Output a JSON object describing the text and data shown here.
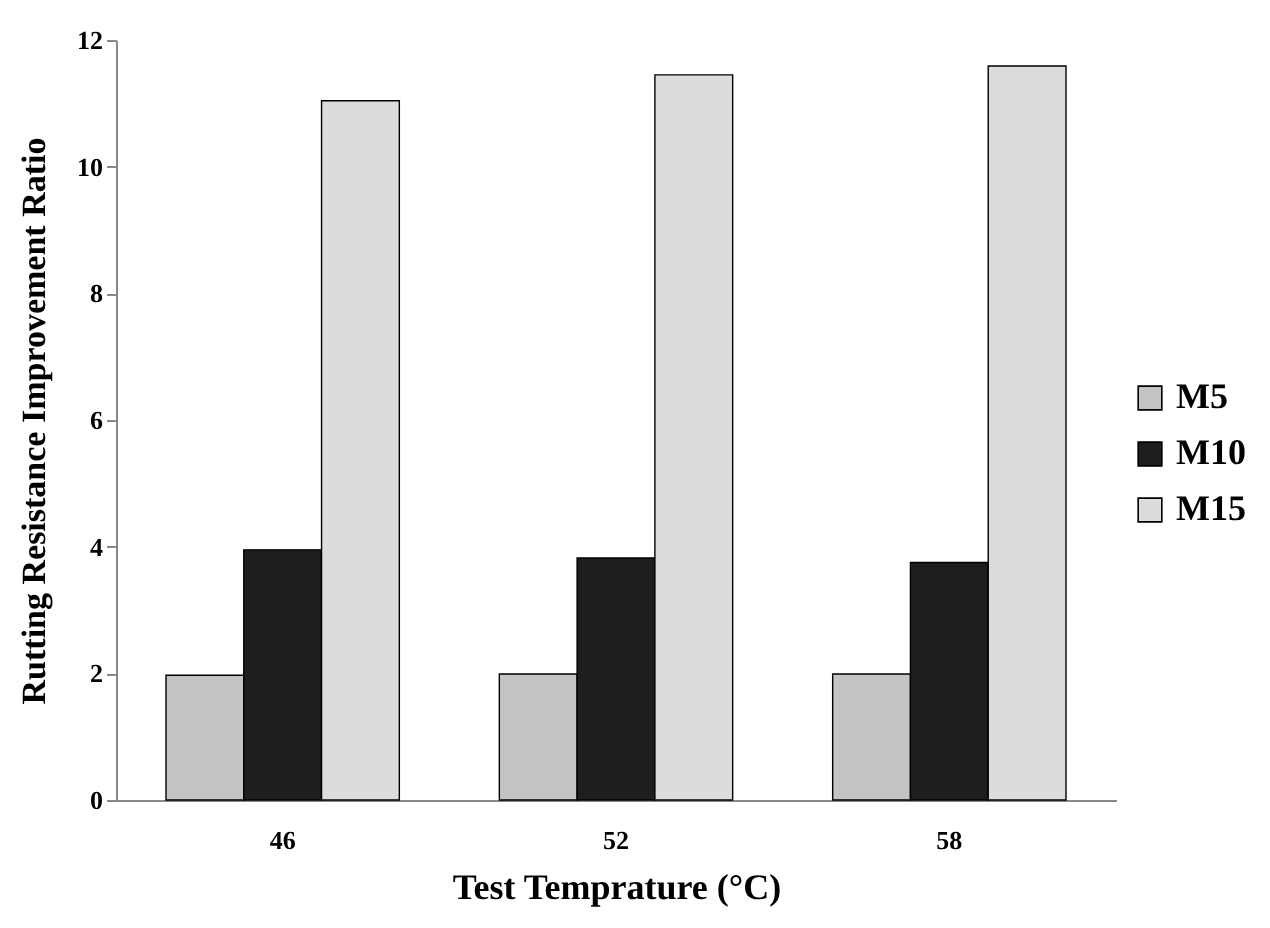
{
  "chart_data": {
    "type": "bar",
    "xlabel": "Test Temprature (°C)",
    "ylabel": "Rutting Resistance Improvement Ratio",
    "categories": [
      "46",
      "52",
      "58"
    ],
    "series": [
      {
        "name": "M5",
        "color": "#c4c4c4",
        "values": [
          1.97,
          1.99,
          1.99
        ]
      },
      {
        "name": "M10",
        "color": "#1e1e1e",
        "values": [
          3.95,
          3.82,
          3.75
        ]
      },
      {
        "name": "M15",
        "color": "#dcdcdc",
        "values": [
          11.04,
          11.45,
          11.59
        ]
      }
    ],
    "ylim": [
      0,
      12
    ],
    "yticks": [
      0,
      2,
      4,
      6,
      8,
      10,
      12
    ],
    "grid": false,
    "legend": "right"
  }
}
